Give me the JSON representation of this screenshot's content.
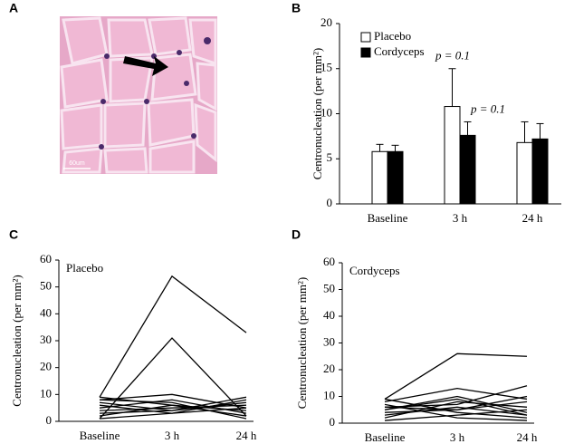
{
  "chart_data": [
    {
      "type": "image",
      "panel": "A",
      "scale_label": "60um"
    },
    {
      "type": "bar",
      "panel": "B",
      "ylabel": "Centronucleation (per mm²)",
      "categories": [
        "Baseline",
        "3 h",
        "24 h"
      ],
      "series": [
        {
          "name": "Placebo",
          "color": "#ffffff",
          "values": [
            5.8,
            10.8,
            6.8
          ],
          "errors": [
            0.8,
            4.2,
            2.3
          ]
        },
        {
          "name": "Cordyceps",
          "color": "#000000",
          "values": [
            5.8,
            7.6,
            7.2
          ],
          "errors": [
            0.7,
            1.5,
            1.7
          ]
        }
      ],
      "annotations": [
        "p = 0.1",
        "p = 0.1"
      ],
      "ylim": [
        0,
        20
      ],
      "yticks": [
        0,
        5,
        10,
        15,
        20
      ],
      "legend": "top-left"
    },
    {
      "type": "line",
      "panel": "C",
      "title": "Placebo",
      "ylabel": "Centronucleation (per mm²)",
      "categories": [
        "Baseline",
        "3 h",
        "24 h"
      ],
      "color": "#000000",
      "series": [
        {
          "values": [
            9,
            54,
            33
          ]
        },
        {
          "values": [
            1,
            31,
            2
          ]
        },
        {
          "values": [
            8,
            10,
            5
          ]
        },
        {
          "values": [
            9,
            6,
            2
          ]
        },
        {
          "values": [
            7,
            4,
            9
          ]
        },
        {
          "values": [
            6,
            3,
            8
          ]
        },
        {
          "values": [
            5,
            8,
            3
          ]
        },
        {
          "values": [
            4,
            5,
            6
          ]
        },
        {
          "values": [
            3,
            4,
            7
          ]
        },
        {
          "values": [
            2,
            6,
            4
          ]
        },
        {
          "values": [
            1,
            3,
            5
          ]
        },
        {
          "values": [
            8,
            7,
            1
          ]
        }
      ],
      "ylim": [
        0,
        60
      ],
      "yticks": [
        0,
        10,
        20,
        30,
        40,
        50,
        60
      ]
    },
    {
      "type": "line",
      "panel": "D",
      "title": "Cordyceps",
      "ylabel": "Centronucleation (per mm²)",
      "categories": [
        "Baseline",
        "3 h",
        "24 h"
      ],
      "color": "#000000",
      "series": [
        {
          "values": [
            9,
            26,
            25
          ]
        },
        {
          "values": [
            8,
            13,
            9
          ]
        },
        {
          "values": [
            6,
            7,
            14
          ]
        },
        {
          "values": [
            5,
            10,
            4
          ]
        },
        {
          "values": [
            9,
            4,
            2
          ]
        },
        {
          "values": [
            4,
            5,
            10
          ]
        },
        {
          "values": [
            2,
            8,
            6
          ]
        },
        {
          "values": [
            3,
            6,
            3
          ]
        },
        {
          "values": [
            1,
            3,
            5
          ]
        },
        {
          "values": [
            7,
            2,
            1
          ]
        },
        {
          "values": [
            6,
            5,
            8
          ]
        },
        {
          "values": [
            5,
            9,
            3
          ]
        }
      ],
      "ylim": [
        0,
        60
      ],
      "yticks": [
        0,
        10,
        20,
        30,
        40,
        50,
        60
      ]
    }
  ]
}
